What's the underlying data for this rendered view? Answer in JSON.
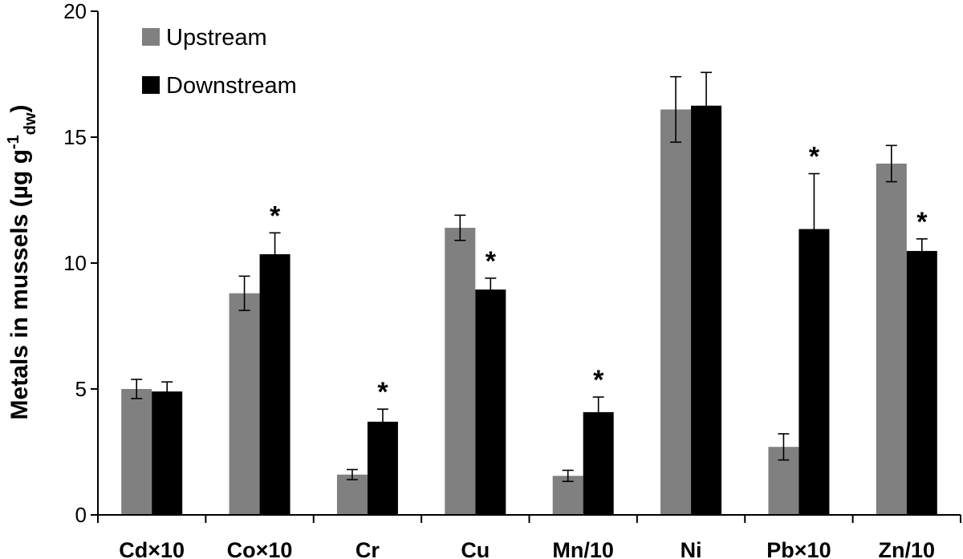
{
  "chart_data": {
    "type": "bar",
    "categories": [
      "Cd×10",
      "Co×10",
      "Cr",
      "Cu",
      "Mn/10",
      "Ni",
      "Pb×10",
      "Zn/10"
    ],
    "series": [
      {
        "name": "Upstream",
        "color": "#808080",
        "values": [
          5.0,
          8.8,
          1.6,
          11.4,
          1.55,
          16.1,
          2.7,
          13.95
        ],
        "errors": [
          0.38,
          0.68,
          0.2,
          0.5,
          0.22,
          1.3,
          0.52,
          0.72
        ]
      },
      {
        "name": "Downstream",
        "color": "#000000",
        "values": [
          4.9,
          10.35,
          3.7,
          8.95,
          4.08,
          16.25,
          11.35,
          10.48
        ],
        "errors": [
          0.38,
          0.85,
          0.5,
          0.45,
          0.6,
          1.32,
          2.2,
          0.48
        ]
      }
    ],
    "significant": [
      false,
      true,
      true,
      true,
      true,
      false,
      true,
      true
    ],
    "significance_marker": "*",
    "yticks": [
      0,
      5,
      10,
      15,
      20
    ],
    "ylim": [
      0,
      20
    ],
    "ylabel": {
      "main": "Metals in mussels (µg g",
      "sup": "-1",
      "sub": "dw",
      "close": ")"
    },
    "legend_position": "top-left"
  }
}
